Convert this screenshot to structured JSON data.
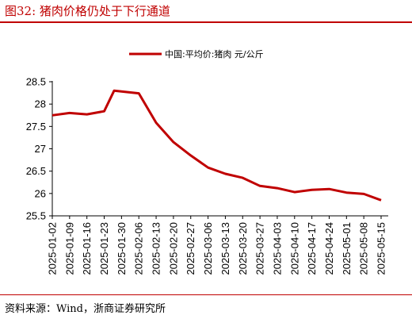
{
  "figure": {
    "title": "图32:   猪肉价格仍处于下行通道",
    "source": "资料来源：Wind，浙商证券研究所"
  },
  "colors": {
    "accent": "#c00000",
    "series": "#c00000"
  },
  "chart_data": {
    "type": "line",
    "legend_position": "top-center",
    "grid": false,
    "x_tick_labels": [
      "2025-01-02",
      "2025-01-09",
      "2025-01-16",
      "2025-01-23",
      "2025-01-30",
      "2025-02-06",
      "2025-02-13",
      "2025-02-20",
      "2025-02-27",
      "2025-03-06",
      "2025-03-13",
      "2025-03-20",
      "2025-03-27",
      "2025-04-03",
      "2025-04-10",
      "2025-04-17",
      "2025-04-24",
      "2025-05-01",
      "2025-05-08",
      "2025-05-15"
    ],
    "y_ticks": [
      25.5,
      26,
      26.5,
      27,
      27.5,
      28,
      28.5
    ],
    "y_tick_labels": [
      "25.5",
      "26",
      "26.5",
      "27",
      "27.5",
      "28",
      "28.5"
    ],
    "ylim": [
      25.5,
      28.5
    ],
    "series": [
      {
        "name": "中国:平均价:猪肉 元/公斤",
        "x": [
          "2025-01-02",
          "2025-01-09",
          "2025-01-16",
          "2025-01-23",
          "2025-01-27",
          "2025-02-06",
          "2025-02-13",
          "2025-02-20",
          "2025-02-27",
          "2025-03-06",
          "2025-03-13",
          "2025-03-20",
          "2025-03-27",
          "2025-04-03",
          "2025-04-10",
          "2025-04-17",
          "2025-04-24",
          "2025-05-01",
          "2025-05-08",
          "2025-05-15"
        ],
        "values": [
          27.75,
          27.8,
          27.77,
          27.84,
          28.3,
          28.24,
          27.58,
          27.15,
          26.85,
          26.58,
          26.44,
          26.35,
          26.17,
          26.12,
          26.03,
          26.08,
          26.1,
          26.02,
          25.99,
          25.85
        ]
      }
    ]
  }
}
